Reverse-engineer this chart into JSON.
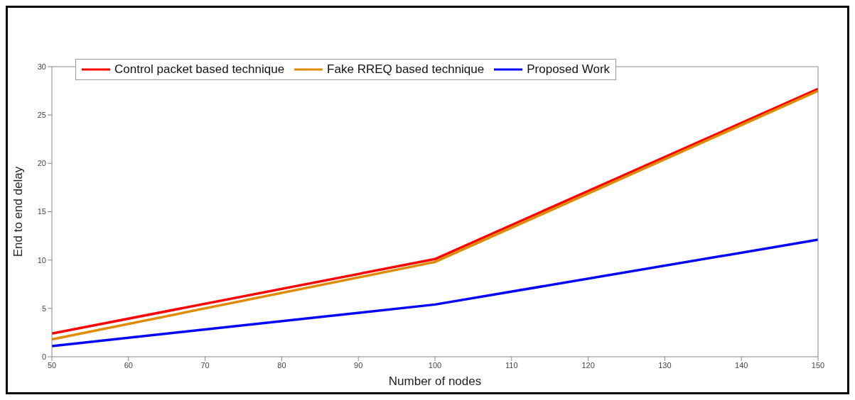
{
  "chart_data": {
    "type": "line",
    "xlabel": "Number of nodes",
    "ylabel": "End to end delay",
    "x": [
      50,
      100,
      150
    ],
    "series": [
      {
        "name": "Control packet based technique",
        "color": "#ff0000",
        "values": [
          2.4,
          10.1,
          27.7
        ]
      },
      {
        "name": "Fake RREQ based technique",
        "color": "#e08a00",
        "values": [
          1.8,
          9.8,
          27.5
        ]
      },
      {
        "name": "Proposed Work",
        "color": "#0000ff",
        "values": [
          1.1,
          5.4,
          12.1
        ]
      }
    ],
    "xlim": [
      50,
      150
    ],
    "xticks": [
      50,
      60,
      70,
      80,
      90,
      100,
      110,
      120,
      130,
      140,
      150
    ],
    "ylim": [
      0,
      30
    ],
    "yticks": [
      0,
      5,
      10,
      15,
      20,
      25,
      30
    ],
    "grid": false,
    "legend": "top left",
    "marker": "none",
    "line_style": "solid"
  }
}
